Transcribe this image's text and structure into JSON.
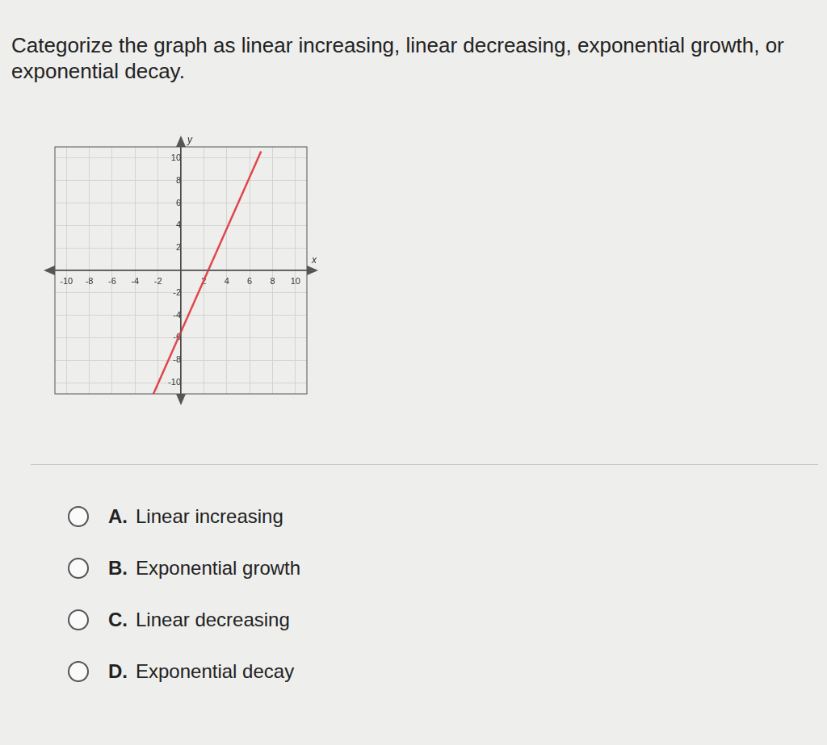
{
  "question": "Categorize the graph as linear increasing, linear decreasing, exponential growth, or exponential decay.",
  "chart_data": {
    "type": "line",
    "x": [
      -2.4,
      7
    ],
    "values": [
      -11,
      10.6
    ],
    "color": "#e0474c",
    "xlabel": "x",
    "ylabel": "y",
    "xlim": [
      -11,
      11
    ],
    "ylim": [
      -11,
      11
    ],
    "xticks": [
      -10,
      -8,
      -6,
      -4,
      -2,
      2,
      4,
      6,
      8,
      10
    ],
    "yticks": [
      -10,
      -8,
      -6,
      -4,
      -2,
      2,
      4,
      6,
      8,
      10
    ],
    "grid": true
  },
  "options": [
    {
      "letter": "A.",
      "text": "Linear increasing"
    },
    {
      "letter": "B.",
      "text": "Exponential growth"
    },
    {
      "letter": "C.",
      "text": "Linear decreasing"
    },
    {
      "letter": "D.",
      "text": "Exponential decay"
    }
  ]
}
